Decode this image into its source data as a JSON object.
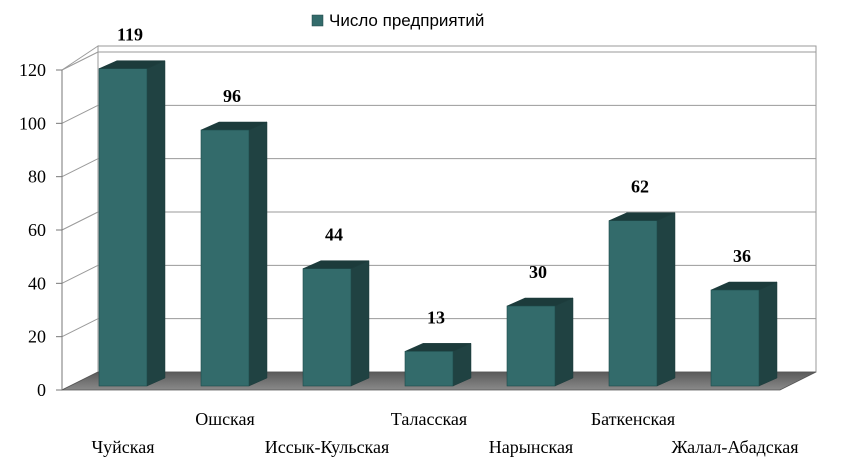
{
  "chart_data": {
    "type": "bar",
    "categories": [
      "Чуйская",
      "Ошская",
      "Иссык-Кульская",
      "Таласская",
      "Нарынская",
      "Баткенская",
      "Жалал-Абадская"
    ],
    "series": [
      {
        "name": "Число предприятий",
        "values": [
          119,
          96,
          44,
          13,
          30,
          62,
          36
        ],
        "color": "#336b6b"
      }
    ],
    "yticks": [
      "0",
      "20",
      "40",
      "60",
      "80",
      "100",
      "120"
    ],
    "ylim": [
      0,
      120
    ],
    "grid": true,
    "legend": "top-center",
    "data_labels": true,
    "style": "3d"
  }
}
